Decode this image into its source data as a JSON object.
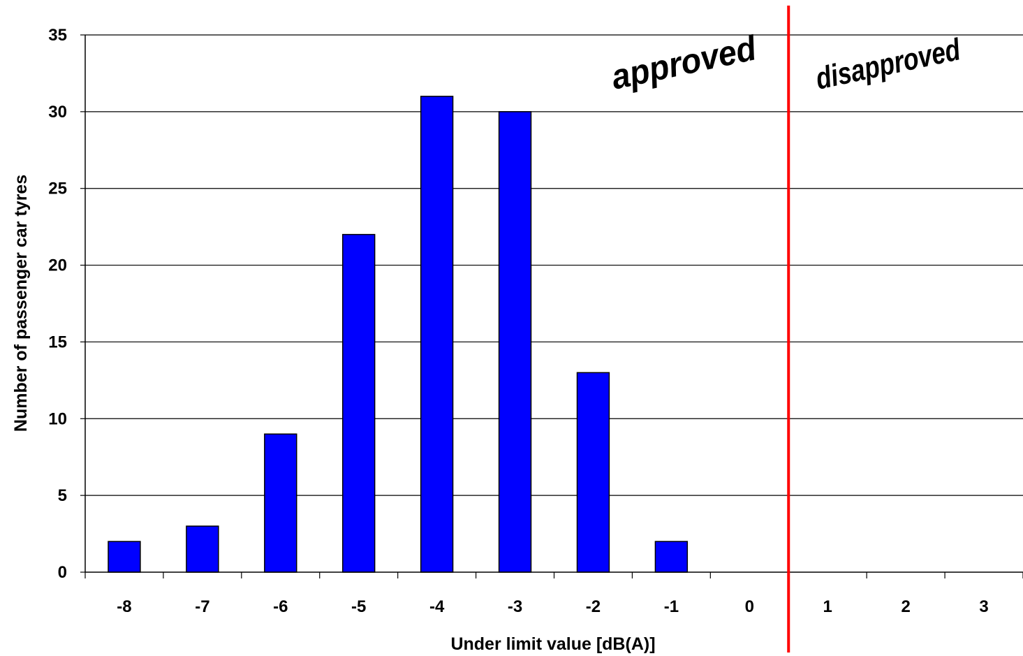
{
  "chart_data": {
    "type": "bar",
    "title": "",
    "xlabel": "Under limit value [dB(A)]",
    "ylabel": "Number of passenger car tyres",
    "categories": [
      "-8",
      "-7",
      "-6",
      "-5",
      "-4",
      "-3",
      "-2",
      "-1",
      "0",
      "1",
      "2",
      "3"
    ],
    "values": [
      2,
      3,
      9,
      22,
      31,
      30,
      13,
      2,
      0,
      0,
      0,
      0
    ],
    "ylim": [
      0,
      35
    ],
    "yticks": [
      0,
      5,
      10,
      15,
      20,
      25,
      30,
      35
    ],
    "grid": "horizontal",
    "legend": "none",
    "bar_color": "#0000FF",
    "bar_edge_color": "#000000",
    "limit_line": {
      "between_categories": [
        "0",
        "1"
      ],
      "color": "#FF0000"
    },
    "annotations": [
      {
        "text": "approved",
        "region": "left of limit line"
      },
      {
        "text": "disapproved",
        "region": "right of limit line"
      }
    ]
  }
}
